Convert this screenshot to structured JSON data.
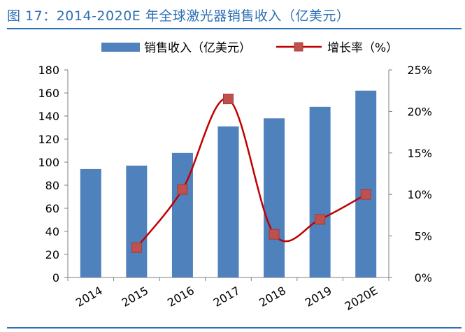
{
  "figure_title": "图 17：2014-2020E 年全球激光器销售收入（亿美元）",
  "colors": {
    "bar": "#4f81bd",
    "line": "#c00000",
    "title": "#2f6fb5"
  },
  "chart_data": {
    "type": "bar",
    "categories": [
      "2014",
      "2015",
      "2016",
      "2017",
      "2018",
      "2019",
      "2020E"
    ],
    "series": [
      {
        "name": "销售收入（亿美元）",
        "type": "bar",
        "axis": "left",
        "values": [
          94,
          97,
          108,
          131,
          138,
          148,
          162
        ]
      },
      {
        "name": "增长率（%）",
        "type": "line",
        "axis": "right",
        "smooth": true,
        "marker": "square",
        "values": [
          null,
          3.6,
          10.6,
          21.5,
          5.2,
          7.0,
          10.0
        ]
      }
    ],
    "y_left": {
      "min": 0,
      "max": 180,
      "ticks": [
        "0",
        "20",
        "40",
        "60",
        "80",
        "100",
        "120",
        "140",
        "160",
        "180"
      ]
    },
    "y_right": {
      "min": 0,
      "max": 25,
      "ticks": [
        "0%",
        "5%",
        "10%",
        "15%",
        "20%",
        "25%"
      ]
    },
    "legend": "top",
    "grid": false
  }
}
